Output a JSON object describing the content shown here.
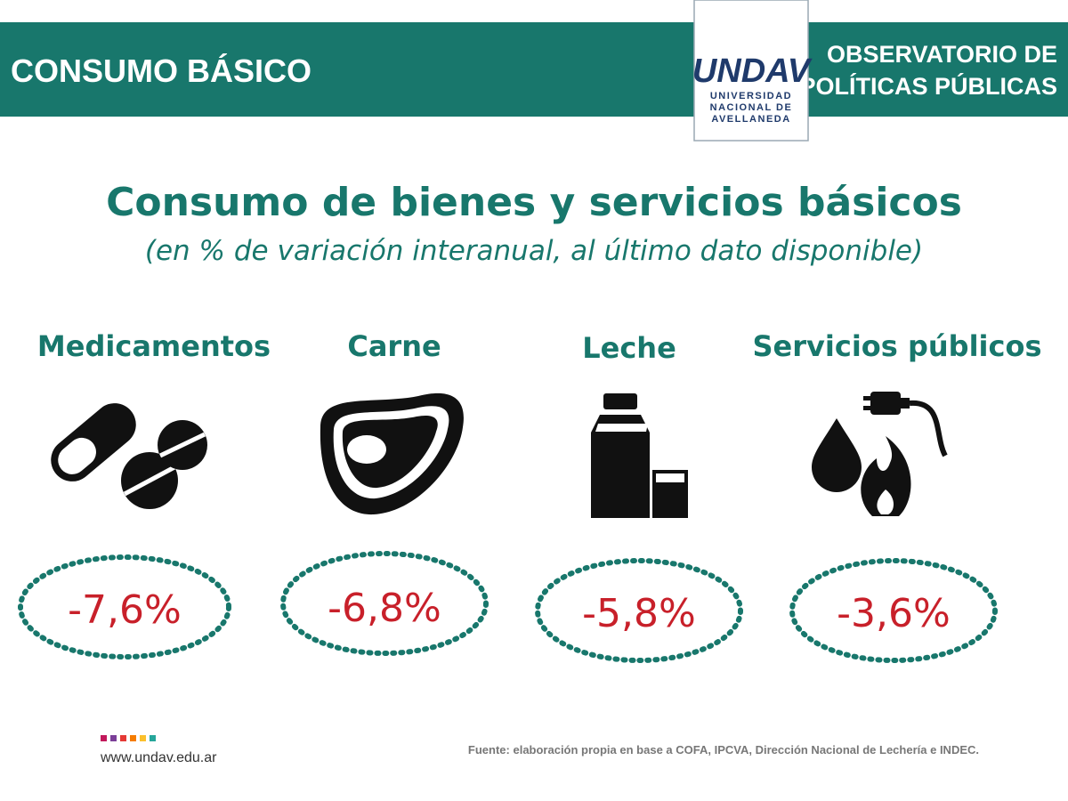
{
  "header": {
    "section": "CONSUMO BÁSICO",
    "observatory": [
      "OBSERVATORIO DE",
      "POLÍTICAS PÚBLICAS"
    ],
    "logo": {
      "wordmark": "UNDAV",
      "lines": [
        "UNIVERSIDAD",
        "NACIONAL DE",
        "AVELLANEDA"
      ]
    }
  },
  "title": "Consumo de bienes y servicios básicos",
  "subtitle": "(en % de variación interanual, al último dato disponible)",
  "items": [
    {
      "label": "Medicamentos",
      "value": "-7,6%"
    },
    {
      "label": "Carne",
      "value": "-6,8%"
    },
    {
      "label": "Leche",
      "value": "-5,8%"
    },
    {
      "label": "Servicios públicos",
      "value": "-3,6%"
    }
  ],
  "footer": {
    "url": "www.undav.edu.ar",
    "source": "Fuente: elaboración propia en base a COFA, IPCVA, Dirección Nacional de Lechería e INDEC."
  }
}
